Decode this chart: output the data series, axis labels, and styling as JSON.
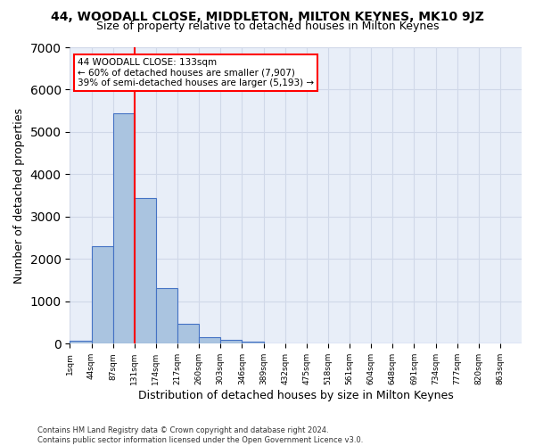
{
  "title1": "44, WOODALL CLOSE, MIDDLETON, MILTON KEYNES, MK10 9JZ",
  "title2": "Size of property relative to detached houses in Milton Keynes",
  "xlabel": "Distribution of detached houses by size in Milton Keynes",
  "ylabel": "Number of detached properties",
  "footnote": "Contains HM Land Registry data © Crown copyright and database right 2024.\nContains public sector information licensed under the Open Government Licence v3.0.",
  "bin_labels": [
    "1sqm",
    "44sqm",
    "87sqm",
    "131sqm",
    "174sqm",
    "217sqm",
    "260sqm",
    "303sqm",
    "346sqm",
    "389sqm",
    "432sqm",
    "475sqm",
    "518sqm",
    "561sqm",
    "604sqm",
    "648sqm",
    "691sqm",
    "734sqm",
    "777sqm",
    "820sqm",
    "863sqm"
  ],
  "bar_heights": [
    80,
    2300,
    5450,
    3450,
    1310,
    480,
    165,
    90,
    55,
    0,
    0,
    0,
    0,
    0,
    0,
    0,
    0,
    0,
    0,
    0,
    0
  ],
  "bar_color": "#aac4e0",
  "bar_edge_color": "#4472c4",
  "property_line_x": 3.0,
  "property_line_label": "44 WOODALL CLOSE: 133sqm",
  "annotation_line1": "← 60% of detached houses are smaller (7,907)",
  "annotation_line2": "39% of semi-detached houses are larger (5,193) →",
  "annotation_box_color": "white",
  "annotation_box_edge": "red",
  "vline_color": "red",
  "ylim": [
    0,
    7000
  ],
  "grid_color": "#d0d8e8",
  "bg_color": "#e8eef8",
  "title1_fontsize": 10,
  "title2_fontsize": 9,
  "xlabel_fontsize": 9,
  "ylabel_fontsize": 9
}
